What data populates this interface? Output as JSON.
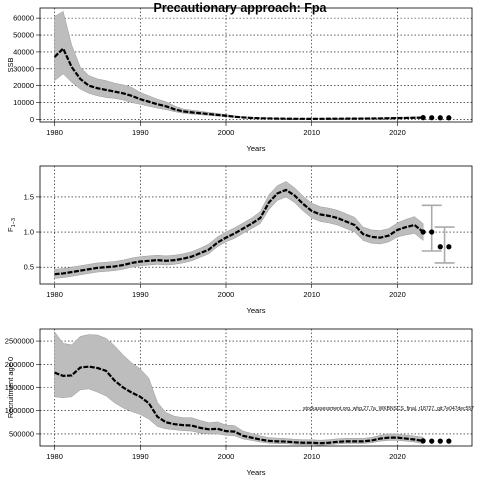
{
  "title": "Precautionary approach: Fpa",
  "footnote": "stockassessment.org, whg.27.7a_WKBNSCS_final, r18727, git:7e047dec557",
  "chart_data": [
    {
      "type": "line",
      "xlabel": "Years",
      "ylabel": "SSB",
      "xlim": [
        1978.3,
        2028.7
      ],
      "ylim": [
        -1500,
        66000
      ],
      "xticks": [
        1980,
        1990,
        2000,
        2010,
        2020
      ],
      "yticks": [
        0,
        10000,
        20000,
        30000,
        40000,
        50000,
        60000
      ],
      "ytick_labels": [
        "0",
        "10000",
        "20000",
        "30000",
        "40000",
        "50000",
        "60000"
      ],
      "grid": true,
      "series": [
        {
          "x": [
            1980,
            1981,
            1982,
            1983,
            1984,
            1985,
            1986,
            1987,
            1988,
            1989,
            1990,
            1991,
            1992,
            1993,
            1994,
            1995,
            1996,
            1997,
            1998,
            1999,
            2000,
            2001,
            2002,
            2003,
            2004,
            2005,
            2006,
            2007,
            2008,
            2009,
            2010,
            2011,
            2012,
            2013,
            2014,
            2015,
            2016,
            2017,
            2018,
            2019,
            2020,
            2021,
            2022,
            2023
          ],
          "estimate": [
            37000,
            42000,
            31000,
            24000,
            20000,
            18500,
            17500,
            16500,
            15500,
            14000,
            12000,
            10500,
            9000,
            7800,
            6000,
            4800,
            4200,
            3700,
            3200,
            2700,
            2200,
            1600,
            1200,
            900,
            700,
            600,
            500,
            450,
            400,
            380,
            350,
            380,
            420,
            450,
            480,
            500,
            540,
            580,
            620,
            700,
            800,
            900,
            1000,
            1100
          ],
          "lower": [
            23000,
            27000,
            22000,
            18000,
            15500,
            14000,
            13000,
            12500,
            11500,
            10000,
            9000,
            7800,
            6700,
            5800,
            4600,
            3700,
            3200,
            2800,
            2400,
            2000,
            1650,
            1200,
            900,
            650,
            500,
            430,
            360,
            320,
            290,
            270,
            250,
            270,
            300,
            320,
            340,
            360,
            390,
            420,
            450,
            500,
            560,
            620,
            680,
            720
          ],
          "upper": [
            61000,
            64000,
            44000,
            31000,
            26000,
            24000,
            23000,
            21500,
            20500,
            19000,
            16000,
            14000,
            12000,
            10500,
            8000,
            6200,
            5500,
            4900,
            4200,
            3600,
            2900,
            2200,
            1600,
            1250,
            980,
            840,
            700,
            630,
            560,
            530,
            490,
            530,
            590,
            630,
            670,
            700,
            760,
            820,
            880,
            1000,
            1150,
            1300,
            1450,
            1600
          ]
        }
      ],
      "projection": {
        "x": [
          2023,
          2024,
          2025,
          2026
        ],
        "values": [
          1100,
          1050,
          1000,
          1000
        ]
      }
    },
    {
      "type": "line",
      "xlabel": "Years",
      "ylabel": "F1-3",
      "ylabel_main": "F",
      "ylabel_sub": "1−3",
      "xlim": [
        1978.3,
        2028.7
      ],
      "ylim": [
        0.26,
        1.94
      ],
      "xticks": [
        1980,
        1990,
        2000,
        2010,
        2020
      ],
      "yticks": [
        0.5,
        1.0,
        1.5
      ],
      "ytick_labels": [
        "0.5",
        "1.0",
        "1.5"
      ],
      "grid": true,
      "series": [
        {
          "x": [
            1980,
            1981,
            1982,
            1983,
            1984,
            1985,
            1986,
            1987,
            1988,
            1989,
            1990,
            1991,
            1992,
            1993,
            1994,
            1995,
            1996,
            1997,
            1998,
            1999,
            2000,
            2001,
            2002,
            2003,
            2004,
            2005,
            2006,
            2007,
            2008,
            2009,
            2010,
            2011,
            2012,
            2013,
            2014,
            2015,
            2016,
            2017,
            2018,
            2019,
            2020,
            2021,
            2022,
            2023
          ],
          "estimate": [
            0.4,
            0.41,
            0.43,
            0.45,
            0.47,
            0.49,
            0.5,
            0.51,
            0.53,
            0.56,
            0.58,
            0.59,
            0.6,
            0.59,
            0.6,
            0.62,
            0.65,
            0.7,
            0.75,
            0.85,
            0.92,
            0.98,
            1.05,
            1.12,
            1.2,
            1.42,
            1.55,
            1.6,
            1.52,
            1.4,
            1.3,
            1.25,
            1.23,
            1.2,
            1.15,
            1.1,
            0.97,
            0.93,
            0.92,
            0.95,
            1.03,
            1.07,
            1.1,
            1.0
          ],
          "lower": [
            0.34,
            0.35,
            0.37,
            0.39,
            0.41,
            0.43,
            0.44,
            0.45,
            0.47,
            0.5,
            0.52,
            0.53,
            0.54,
            0.53,
            0.54,
            0.56,
            0.59,
            0.64,
            0.69,
            0.79,
            0.86,
            0.91,
            0.98,
            1.05,
            1.12,
            1.32,
            1.45,
            1.5,
            1.42,
            1.3,
            1.2,
            1.15,
            1.13,
            1.1,
            1.05,
            1.0,
            0.88,
            0.84,
            0.83,
            0.86,
            0.93,
            0.96,
            0.98,
            0.88
          ],
          "upper": [
            0.47,
            0.48,
            0.5,
            0.52,
            0.54,
            0.56,
            0.57,
            0.58,
            0.6,
            0.63,
            0.65,
            0.66,
            0.67,
            0.66,
            0.67,
            0.69,
            0.72,
            0.77,
            0.83,
            0.93,
            1.0,
            1.06,
            1.13,
            1.2,
            1.29,
            1.53,
            1.66,
            1.72,
            1.63,
            1.51,
            1.41,
            1.36,
            1.34,
            1.31,
            1.26,
            1.21,
            1.07,
            1.03,
            1.02,
            1.05,
            1.13,
            1.18,
            1.22,
            1.12
          ]
        }
      ],
      "projection": {
        "x": [
          2023,
          2024,
          2025,
          2026
        ],
        "values": [
          1.0,
          1.0,
          0.79,
          0.79
        ]
      },
      "error_bars": [
        {
          "x": 2024,
          "low": 0.73,
          "high": 1.38
        },
        {
          "x": 2025.5,
          "low": 0.56,
          "high": 1.07
        }
      ]
    },
    {
      "type": "line",
      "xlabel": "Years",
      "ylabel": "Recruitment age 0",
      "xlim": [
        1978.3,
        2028.7
      ],
      "ylim": [
        240000,
        2760000
      ],
      "xticks": [
        1980,
        1990,
        2000,
        2010,
        2020
      ],
      "yticks": [
        500000,
        1000000,
        1500000,
        2000000,
        2500000
      ],
      "ytick_labels": [
        "500000",
        "1000000",
        "1500000",
        "2000000",
        "2500000"
      ],
      "grid": true,
      "series": [
        {
          "x": [
            1980,
            1981,
            1982,
            1983,
            1984,
            1985,
            1986,
            1987,
            1988,
            1989,
            1990,
            1991,
            1992,
            1993,
            1994,
            1995,
            1996,
            1997,
            1998,
            1999,
            2000,
            2001,
            2002,
            2003,
            2004,
            2005,
            2006,
            2007,
            2008,
            2009,
            2010,
            2011,
            2012,
            2013,
            2014,
            2015,
            2016,
            2017,
            2018,
            2019,
            2020,
            2021,
            2022,
            2023
          ],
          "estimate": [
            1820000,
            1750000,
            1760000,
            1930000,
            1950000,
            1920000,
            1860000,
            1650000,
            1500000,
            1390000,
            1300000,
            1160000,
            870000,
            750000,
            710000,
            690000,
            680000,
            630000,
            600000,
            610000,
            560000,
            550000,
            460000,
            420000,
            380000,
            350000,
            340000,
            335000,
            320000,
            310000,
            310000,
            300000,
            310000,
            330000,
            340000,
            340000,
            340000,
            360000,
            400000,
            420000,
            420000,
            400000,
            380000,
            350000
          ],
          "lower": [
            1300000,
            1280000,
            1300000,
            1450000,
            1470000,
            1400000,
            1320000,
            1170000,
            1060000,
            980000,
            920000,
            820000,
            660000,
            610000,
            590000,
            570000,
            560000,
            520000,
            500000,
            500000,
            470000,
            460000,
            390000,
            360000,
            325000,
            300000,
            290000,
            290000,
            275000,
            265000,
            265000,
            255000,
            265000,
            285000,
            295000,
            295000,
            295000,
            310000,
            345000,
            360000,
            360000,
            345000,
            325000,
            290000
          ],
          "upper": [
            2700000,
            2450000,
            2420000,
            2600000,
            2640000,
            2630000,
            2560000,
            2400000,
            2200000,
            2030000,
            1900000,
            1700000,
            1180000,
            960000,
            880000,
            850000,
            850000,
            790000,
            740000,
            760000,
            690000,
            680000,
            560000,
            510000,
            460000,
            420000,
            410000,
            400000,
            385000,
            375000,
            375000,
            365000,
            375000,
            395000,
            405000,
            405000,
            405000,
            425000,
            470000,
            500000,
            500000,
            475000,
            455000,
            430000
          ]
        }
      ],
      "projection": {
        "x": [
          2023,
          2024,
          2025,
          2026
        ],
        "values": [
          350000,
          345000,
          345000,
          345000
        ]
      }
    }
  ]
}
